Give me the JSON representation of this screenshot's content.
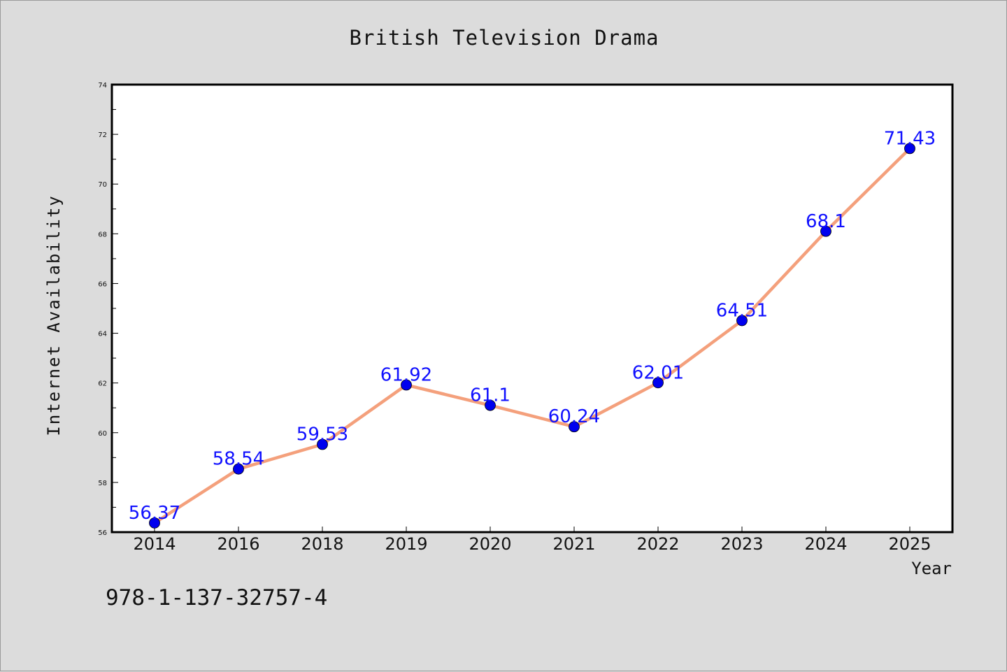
{
  "chart_data": {
    "type": "line",
    "title": "British Television Drama",
    "xlabel": "Year",
    "ylabel": "Internet Availability",
    "categories": [
      "2014",
      "2016",
      "2018",
      "2019",
      "2020",
      "2021",
      "2022",
      "2023",
      "2024",
      "2025"
    ],
    "series": [
      {
        "values": [
          56.37,
          58.54,
          59.53,
          61.92,
          61.1,
          60.24,
          62.01,
          64.51,
          68.1,
          71.43
        ],
        "line_color": "#f4a07c",
        "marker_color": "#0000ee"
      }
    ],
    "data_labels": [
      "56.37",
      "58.54",
      "59.53",
      "61.92",
      "61.1",
      "60.24",
      "62.01",
      "64.51",
      "68.1",
      "71.43"
    ],
    "ylim": [
      56,
      74
    ],
    "yticks": [
      56,
      58,
      60,
      62,
      64,
      66,
      68,
      70,
      72,
      74
    ],
    "grid": false,
    "legend": "none"
  },
  "footer": {
    "isbn": "978-1-137-32757-4"
  },
  "colors": {
    "background": "#dcdcdc",
    "plot_background": "#ffffff",
    "line": "#f4a07c",
    "marker": "#0000ee",
    "data_label": "#1010ff"
  }
}
